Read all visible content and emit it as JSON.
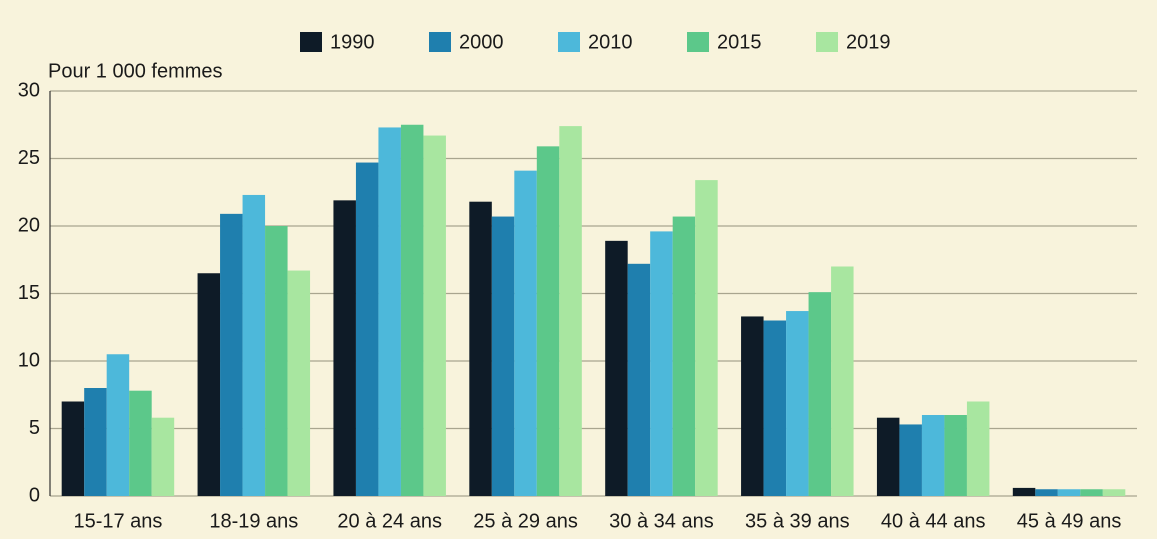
{
  "chart_data": {
    "type": "bar",
    "y_label": "Pour 1 000 femmes",
    "categories": [
      "15-17 ans",
      "18-19 ans",
      "20 à 24 ans",
      "25 à 29 ans",
      "30 à 34 ans",
      "35 à 39 ans",
      "40 à 44 ans",
      "45 à 49 ans"
    ],
    "series": [
      {
        "name": "1990",
        "color": "#0e1b27",
        "values": [
          7.0,
          16.5,
          21.9,
          21.8,
          18.9,
          13.3,
          5.8,
          0.6
        ]
      },
      {
        "name": "2000",
        "color": "#1f7fae",
        "values": [
          8.0,
          20.9,
          24.7,
          20.7,
          17.2,
          13.0,
          5.3,
          0.5
        ]
      },
      {
        "name": "2010",
        "color": "#4db8da",
        "values": [
          10.5,
          22.3,
          27.3,
          24.1,
          19.6,
          13.7,
          6.0,
          0.5
        ]
      },
      {
        "name": "2015",
        "color": "#5cc88a",
        "values": [
          7.8,
          20.0,
          27.5,
          25.9,
          20.7,
          15.1,
          6.0,
          0.5
        ]
      },
      {
        "name": "2019",
        "color": "#a8e6a0",
        "values": [
          5.8,
          16.7,
          26.7,
          27.4,
          23.4,
          17.0,
          7.0,
          0.5
        ]
      }
    ],
    "ylim": [
      0,
      30
    ],
    "yticks": [
      0,
      5,
      10,
      15,
      20,
      25,
      30
    ],
    "grid": true,
    "legend": "top"
  }
}
